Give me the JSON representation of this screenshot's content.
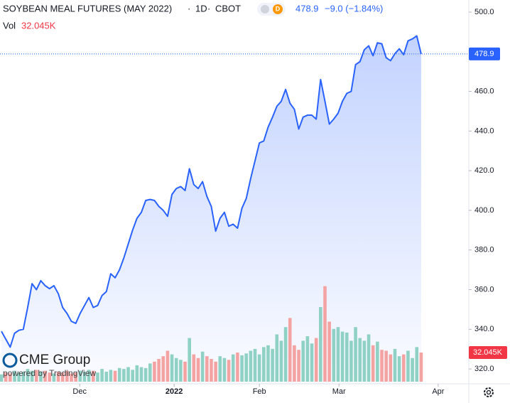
{
  "chart_data": {
    "type": "area",
    "title": "SOYBEAN MEAL FUTURES (MAY 2022)",
    "interval": "1D",
    "exchange": "CBOT",
    "change": "−9.0 (−1.84%)",
    "volume_label": "Vol",
    "brand": "CME Group",
    "powered_by": "powered by TradingView",
    "series": [
      {
        "name": "SOYBEAN MEAL FUTURES (MAY 2022)",
        "color": "#2962ff",
        "values": [
          339,
          335,
          331,
          338,
          339.5,
          340,
          351,
          363,
          360,
          364.5,
          362,
          360.5,
          362,
          358,
          351,
          348,
          344,
          343,
          348,
          352,
          356,
          351,
          352,
          357,
          359,
          368,
          366,
          370,
          376,
          383,
          390,
          396,
          399,
          405,
          405.5,
          405,
          402,
          400,
          397,
          408,
          411,
          412,
          410,
          421,
          413,
          411,
          414.5,
          407,
          402,
          389.5,
          396,
          399,
          392,
          393,
          391,
          401,
          406,
          416,
          425,
          434,
          435,
          442,
          447,
          452.5,
          455,
          461,
          454,
          451,
          441,
          447,
          448,
          448,
          446,
          466,
          455,
          443.5,
          446,
          449,
          455,
          459,
          460,
          473.5,
          475,
          481,
          483,
          478,
          484.5,
          484,
          477,
          475.5,
          479,
          481.5,
          478.5,
          485.5,
          486.5,
          488,
          478.9
        ]
      },
      {
        "name": "Vol",
        "up_color": "#8fd1c5",
        "down_color": "#f4a3a3",
        "values": [
          8000,
          10000,
          9000,
          12000,
          10000,
          11000,
          14000,
          12000,
          13000,
          11000,
          12000,
          10000,
          9000,
          11000,
          10000,
          12000,
          9000,
          10000,
          12000,
          11000,
          13000,
          12000,
          10000,
          14000,
          11000,
          13000,
          12000,
          15000,
          14000,
          16000,
          13000,
          18000,
          16000,
          15000,
          20000,
          22000,
          25000,
          28000,
          34000,
          30000,
          26000,
          24000,
          22000,
          48000,
          30000,
          26000,
          33000,
          28000,
          25000,
          22000,
          28000,
          26000,
          24000,
          30000,
          32000,
          29000,
          31000,
          34000,
          36000,
          30000,
          38000,
          40000,
          36000,
          52000,
          45000,
          60000,
          70000,
          40000,
          35000,
          45000,
          50000,
          42000,
          48000,
          82000,
          105000,
          66000,
          58000,
          60000,
          55000,
          54000,
          45000,
          60000,
          48000,
          45000,
          52000,
          40000,
          44000,
          35000,
          34000,
          30000,
          36000,
          28000,
          30000,
          34000,
          26000,
          38000,
          32045
        ],
        "value_labels": {
          "96": "32.045K"
        }
      }
    ],
    "xlim": [
      -0.33,
      106.9
    ],
    "xticks": [
      {
        "value": 17.9,
        "label": "Dec"
      },
      {
        "value": 39.5,
        "label": "2022"
      },
      {
        "value": 59,
        "label": "Feb"
      },
      {
        "value": 77.2,
        "label": "Mar"
      },
      {
        "value": 99.9,
        "label": "Apr"
      }
    ],
    "ylim": [
      312.5,
      506.1
    ],
    "yticks": [
      {
        "value": 320,
        "label": "320.0"
      },
      {
        "value": 340,
        "label": "340.0"
      },
      {
        "value": 360,
        "label": "360.0"
      },
      {
        "value": 380,
        "label": "380.0"
      },
      {
        "value": 400,
        "label": "400.0"
      },
      {
        "value": 420,
        "label": "420.0"
      },
      {
        "value": 440,
        "label": "440.0"
      },
      {
        "value": 460,
        "label": "460.0"
      },
      {
        "value": 480,
        "label": "480.0"
      },
      {
        "value": 500,
        "label": "500.0"
      }
    ],
    "volume_ylim": [
      0,
      419500
    ]
  }
}
